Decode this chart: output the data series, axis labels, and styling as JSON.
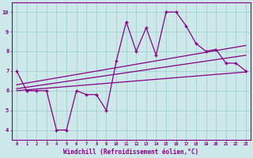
{
  "xlabel": "Windchill (Refroidissement éolien,°C)",
  "bg_color": "#cce8e8",
  "line_color": "#880088",
  "grid_color": "#99cccc",
  "xlim": [
    -0.5,
    23.5
  ],
  "ylim": [
    3.5,
    10.5
  ],
  "xticks": [
    0,
    1,
    2,
    3,
    4,
    5,
    6,
    7,
    8,
    9,
    10,
    11,
    12,
    13,
    14,
    15,
    16,
    17,
    18,
    19,
    20,
    21,
    22,
    23
  ],
  "yticks": [
    4,
    5,
    6,
    7,
    8,
    9,
    10
  ],
  "main_x": [
    0,
    1,
    2,
    3,
    4,
    5,
    6,
    7,
    8,
    9,
    10,
    11,
    12,
    13,
    14,
    15,
    16,
    17,
    18,
    19,
    20,
    21,
    22,
    23
  ],
  "main_y": [
    7.0,
    6.0,
    6.0,
    6.0,
    4.0,
    4.0,
    6.0,
    5.8,
    5.8,
    5.0,
    7.5,
    9.5,
    8.0,
    9.2,
    7.8,
    10.0,
    10.0,
    9.3,
    8.4,
    8.0,
    8.1,
    7.4,
    7.4,
    7.0
  ],
  "line2_x": [
    0,
    23
  ],
  "line2_y": [
    6.0,
    6.95
  ],
  "line3_x": [
    0,
    23
  ],
  "line3_y": [
    6.1,
    7.8
  ],
  "line4_x": [
    0,
    23
  ],
  "line4_y": [
    6.3,
    8.3
  ]
}
